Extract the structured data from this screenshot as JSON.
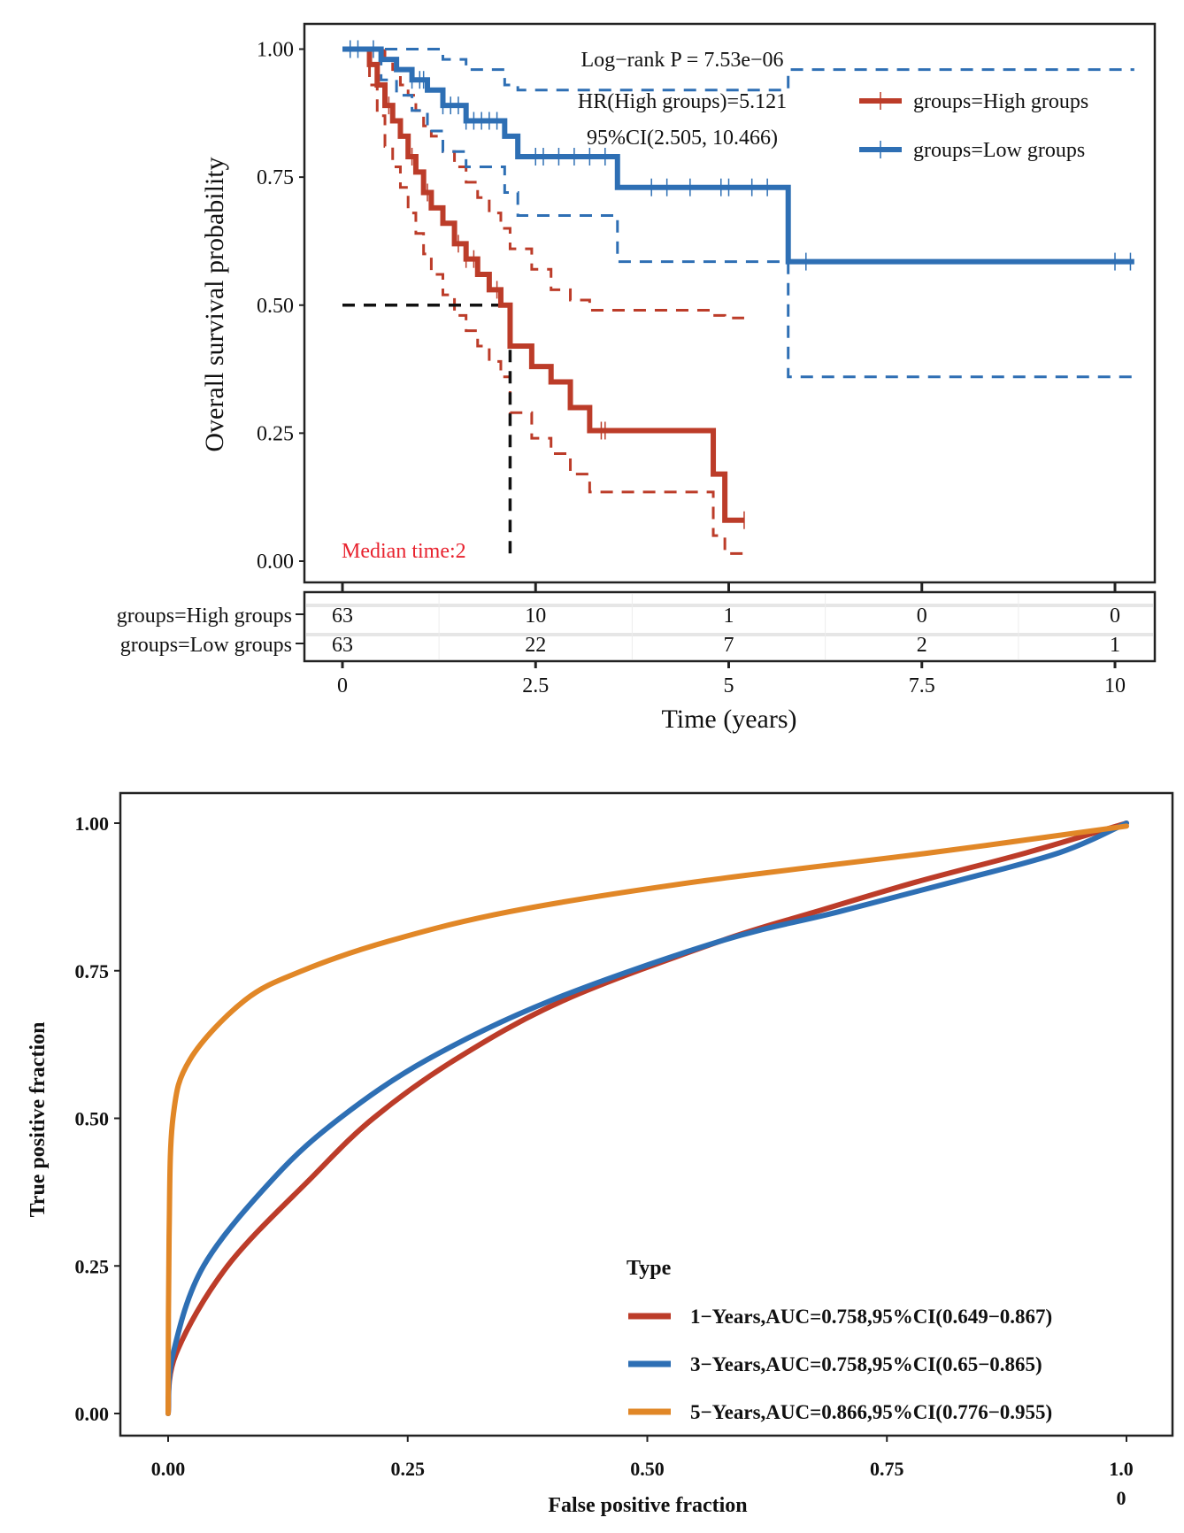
{
  "chart_data": [
    {
      "type": "line",
      "subtype": "kaplan-meier",
      "xlabel": "Time (years)",
      "ylabel": "Overall survival probability",
      "xlim": [
        0,
        10.3
      ],
      "ylim": [
        0,
        1
      ],
      "x_ticks": [
        "0",
        "2.5",
        "5",
        "7.5",
        "10"
      ],
      "x_tick_values": [
        0,
        2.5,
        5,
        7.5,
        10
      ],
      "y_ticks": [
        "0.00",
        "0.25",
        "0.50",
        "0.75",
        "1.00"
      ],
      "y_tick_values": [
        0,
        0.25,
        0.5,
        0.75,
        1
      ],
      "grid": false,
      "legend_position": "top-right",
      "annotations": {
        "logrank": "Log−rank P = 7.53e−06",
        "hr": "HR(High groups)=5.121",
        "ci": "95%CI(2.505, 10.466)",
        "median": "Median time:2"
      },
      "median_time": 2.17,
      "series": [
        {
          "name": "groups=High groups",
          "color": "#BC3C29",
          "time": [
            0,
            0.35,
            0.45,
            0.55,
            0.65,
            0.75,
            0.85,
            0.95,
            1.05,
            1.15,
            1.3,
            1.45,
            1.6,
            1.75,
            1.9,
            2.05,
            2.17,
            2.45,
            2.7,
            2.95,
            3.2,
            4.8,
            4.95,
            5.2
          ],
          "survival": [
            1,
            0.97,
            0.93,
            0.89,
            0.86,
            0.83,
            0.79,
            0.76,
            0.72,
            0.69,
            0.66,
            0.62,
            0.59,
            0.56,
            0.53,
            0.5,
            0.42,
            0.38,
            0.35,
            0.3,
            0.255,
            0.17,
            0.08,
            0.08
          ],
          "upper": [
            1,
            1,
            1,
            0.98,
            0.96,
            0.93,
            0.91,
            0.88,
            0.85,
            0.83,
            0.8,
            0.77,
            0.74,
            0.71,
            0.68,
            0.65,
            0.61,
            0.57,
            0.53,
            0.51,
            0.49,
            0.48,
            0.475,
            0.475
          ],
          "lower": [
            1,
            0.93,
            0.87,
            0.81,
            0.77,
            0.73,
            0.68,
            0.64,
            0.6,
            0.56,
            0.52,
            0.48,
            0.45,
            0.42,
            0.39,
            0.36,
            0.29,
            0.24,
            0.21,
            0.17,
            0.135,
            0.05,
            0.015,
            0.015
          ],
          "censor_times": [
            0.6,
            0.9,
            1.1,
            1.5,
            1.6,
            1.7,
            2.0,
            3.35,
            3.4,
            5.2
          ]
        },
        {
          "name": "groups=Low groups",
          "color": "#2E6FB4",
          "time": [
            0,
            0.5,
            0.7,
            0.9,
            1.1,
            1.3,
            1.6,
            2.1,
            2.27,
            3.56,
            5.77,
            10.25
          ],
          "survival": [
            1,
            0.98,
            0.96,
            0.94,
            0.92,
            0.89,
            0.86,
            0.83,
            0.79,
            0.73,
            0.585,
            0.585
          ],
          "upper": [
            1,
            1,
            1,
            1,
            1,
            0.98,
            0.96,
            0.93,
            0.92,
            0.92,
            0.96,
            0.96
          ],
          "lower": [
            1,
            0.94,
            0.91,
            0.88,
            0.84,
            0.8,
            0.77,
            0.72,
            0.675,
            0.585,
            0.36,
            0.36
          ],
          "censor_times": [
            0.1,
            0.2,
            0.4,
            0.9,
            1.0,
            1.05,
            1.3,
            1.4,
            1.5,
            1.6,
            1.7,
            1.8,
            1.9,
            2.0,
            2.5,
            2.6,
            2.8,
            3.0,
            3.2,
            3.4,
            4.0,
            4.2,
            4.5,
            4.9,
            5.0,
            5.3,
            5.5,
            6.0,
            10.0,
            10.2
          ]
        }
      ],
      "risk_table": {
        "rows": [
          {
            "label": "groups=High groups",
            "values": [
              "63",
              "10",
              "1",
              "0",
              "0"
            ]
          },
          {
            "label": "groups=Low groups",
            "values": [
              "63",
              "22",
              "7",
              "2",
              "1"
            ]
          }
        ]
      }
    },
    {
      "type": "line",
      "subtype": "roc",
      "xlabel": "False positive fraction",
      "ylabel": "True positive fraction",
      "xlim": [
        0,
        1
      ],
      "ylim": [
        0,
        1
      ],
      "x_ticks": [
        "0.00",
        "0.25",
        "0.50",
        "0.75",
        "1.00"
      ],
      "x_tick_values": [
        0,
        0.25,
        0.5,
        0.75,
        1
      ],
      "y_ticks": [
        "0.00",
        "0.25",
        "0.50",
        "0.75",
        "1.00"
      ],
      "y_tick_values": [
        0,
        0.25,
        0.5,
        0.75,
        1
      ],
      "grid": false,
      "legend_title": "Type",
      "legend_position": "bottom-right",
      "series": [
        {
          "name": "1−Years,AUC=0.758,95%CI(0.649−0.867)",
          "color": "#BC3C29",
          "fpr": [
            0,
            0.008,
            0.062,
            0.15,
            0.214,
            0.3,
            0.413,
            0.576,
            0.676,
            0.78,
            0.896,
            1
          ],
          "tpr": [
            0,
            0.1,
            0.25,
            0.4,
            0.5,
            0.6,
            0.7,
            0.8,
            0.85,
            0.9,
            0.95,
            1
          ]
        },
        {
          "name": "3−Years,AUC=0.758,95%CI(0.65−0.865)",
          "color": "#2E6FB4",
          "fpr": [
            0,
            0.005,
            0.037,
            0.111,
            0.179,
            0.271,
            0.4,
            0.576,
            0.7,
            0.818,
            0.93,
            1
          ],
          "tpr": [
            0,
            0.1,
            0.25,
            0.4,
            0.5,
            0.6,
            0.7,
            0.8,
            0.85,
            0.9,
            0.95,
            1
          ]
        },
        {
          "name": "5−Years,AUC=0.866,95%CI(0.776−0.955)",
          "color": "#E18727",
          "fpr": [
            0,
            0.001,
            0.005,
            0.023,
            0.08,
            0.14,
            0.23,
            0.356,
            0.548,
            0.796,
            1
          ],
          "tpr": [
            0,
            0.3,
            0.5,
            0.6,
            0.7,
            0.75,
            0.8,
            0.85,
            0.9,
            0.95,
            0.995
          ]
        }
      ]
    }
  ]
}
